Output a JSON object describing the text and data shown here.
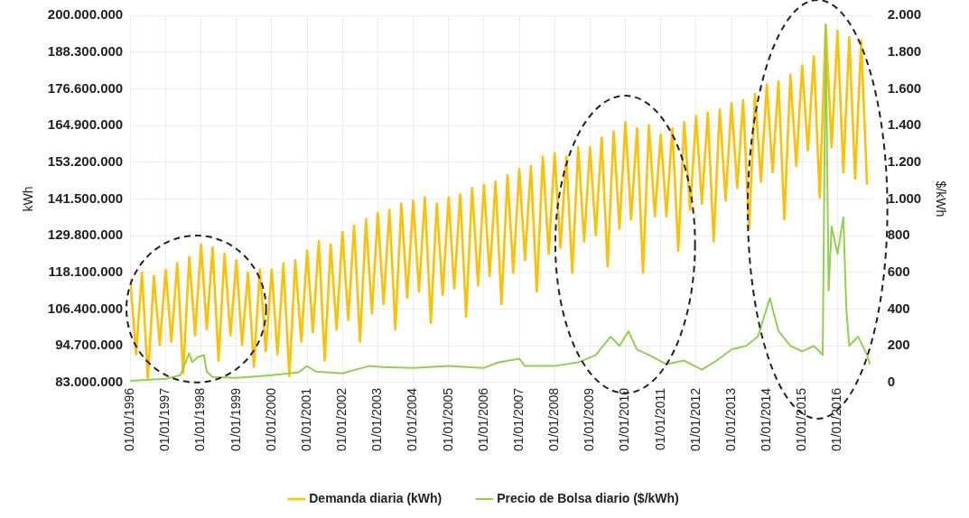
{
  "chart_data": {
    "type": "line",
    "xlabel": null,
    "ylabel": "kWh",
    "y2label": "$/kWh",
    "x": [
      "1996-01",
      "1996-03",
      "1996-05",
      "1996-07",
      "1996-09",
      "1996-11",
      "1997-01",
      "1997-03",
      "1997-05",
      "1997-07",
      "1997-09",
      "1997-11",
      "1998-01",
      "1998-03",
      "1998-05",
      "1998-07",
      "1998-09",
      "1998-11",
      "1999-01",
      "1999-03",
      "1999-05",
      "1999-07",
      "1999-09",
      "1999-11",
      "2000-01",
      "2000-03",
      "2000-05",
      "2000-07",
      "2000-09",
      "2000-11",
      "2001-01",
      "2001-03",
      "2001-05",
      "2001-07",
      "2001-09",
      "2001-11",
      "2002-01",
      "2002-03",
      "2002-05",
      "2002-07",
      "2002-09",
      "2002-11",
      "2003-01",
      "2003-03",
      "2003-05",
      "2003-07",
      "2003-09",
      "2003-11",
      "2004-01",
      "2004-03",
      "2004-05",
      "2004-07",
      "2004-09",
      "2004-11",
      "2005-01",
      "2005-03",
      "2005-05",
      "2005-07",
      "2005-09",
      "2005-11",
      "2006-01",
      "2006-03",
      "2006-05",
      "2006-07",
      "2006-09",
      "2006-11",
      "2007-01",
      "2007-03",
      "2007-05",
      "2007-07",
      "2007-09",
      "2007-11",
      "2008-01",
      "2008-03",
      "2008-05",
      "2008-07",
      "2008-09",
      "2008-11",
      "2009-01",
      "2009-03",
      "2009-05",
      "2009-07",
      "2009-09",
      "2009-11",
      "2010-01",
      "2010-03",
      "2010-05",
      "2010-07",
      "2010-09",
      "2010-11",
      "2011-01",
      "2011-03",
      "2011-05",
      "2011-07",
      "2011-09",
      "2011-11",
      "2012-01",
      "2012-03",
      "2012-05",
      "2012-07",
      "2012-09",
      "2012-11",
      "2013-01",
      "2013-03",
      "2013-05",
      "2013-07",
      "2013-09",
      "2013-11",
      "2014-01",
      "2014-03",
      "2014-05",
      "2014-07",
      "2014-09",
      "2014-11",
      "2015-01",
      "2015-03",
      "2015-05",
      "2015-07",
      "2015-09",
      "2015-11",
      "2016-01",
      "2016-03",
      "2016-05",
      "2016-07",
      "2016-09",
      "2016-11"
    ],
    "series": [
      {
        "name": "Demanda diaria (kWh)",
        "color": "#ffc000",
        "values": [
          116000000,
          92000000,
          118000000,
          84000000,
          117000000,
          95000000,
          119000000,
          96000000,
          121000000,
          86000000,
          123000000,
          98000000,
          127000000,
          100000000,
          126000000,
          90000000,
          124000000,
          98000000,
          122000000,
          95000000,
          118000000,
          88000000,
          119000000,
          93000000,
          119000000,
          92000000,
          121000000,
          85000000,
          122000000,
          96000000,
          125000000,
          99000000,
          128000000,
          90000000,
          127000000,
          100000000,
          131000000,
          103000000,
          133000000,
          96000000,
          135000000,
          105000000,
          137000000,
          108000000,
          138000000,
          100000000,
          140000000,
          110000000,
          141000000,
          112000000,
          142000000,
          102000000,
          140000000,
          111000000,
          142000000,
          113000000,
          143000000,
          104000000,
          145000000,
          114000000,
          146000000,
          117000000,
          147000000,
          108000000,
          149000000,
          118000000,
          151000000,
          122000000,
          152000000,
          112000000,
          155000000,
          124000000,
          156000000,
          126000000,
          155000000,
          118000000,
          158000000,
          128000000,
          158000000,
          130000000,
          161000000,
          120000000,
          163000000,
          132000000,
          166000000,
          135000000,
          164000000,
          118000000,
          165000000,
          136000000,
          162000000,
          136000000,
          164000000,
          125000000,
          166000000,
          138000000,
          168000000,
          140000000,
          169000000,
          128000000,
          170000000,
          141000000,
          172000000,
          145000000,
          173000000,
          132000000,
          175000000,
          147000000,
          178000000,
          150000000,
          179000000,
          135000000,
          181000000,
          152000000,
          184000000,
          157000000,
          187000000,
          142000000,
          197000000,
          158000000,
          195000000,
          150000000,
          193000000,
          148000000,
          192000000,
          146000000
        ]
      },
      {
        "name": "Precio de Bolsa diario ($/kWh)",
        "color": "#92d050",
        "axis": "y2",
        "x": [
          "1996-01",
          "1996-06",
          "1997-01",
          "1997-06",
          "1997-09",
          "1997-10",
          "1997-12",
          "1998-02",
          "1998-03",
          "1998-05",
          "1999-01",
          "2000-01",
          "2000-10",
          "2001-01",
          "2001-04",
          "2002-01",
          "2002-10",
          "2003-03",
          "2004-01",
          "2005-01",
          "2006-01",
          "2006-06",
          "2007-01",
          "2007-03",
          "2008-01",
          "2008-09",
          "2009-03",
          "2009-08",
          "2009-11",
          "2010-02",
          "2010-05",
          "2010-09",
          "2011-03",
          "2011-09",
          "2012-03",
          "2012-08",
          "2013-01",
          "2013-06",
          "2013-10",
          "2014-02",
          "2014-05",
          "2014-09",
          "2015-01",
          "2015-05",
          "2015-08",
          "2015-09",
          "2015-10",
          "2015-11",
          "2016-01",
          "2016-03",
          "2016-04",
          "2016-05",
          "2016-08",
          "2016-11",
          "2016-12"
        ],
        "values": [
          10,
          15,
          20,
          40,
          160,
          110,
          140,
          150,
          60,
          30,
          25,
          40,
          55,
          90,
          60,
          50,
          90,
          85,
          80,
          90,
          80,
          110,
          130,
          90,
          90,
          110,
          150,
          250,
          200,
          280,
          180,
          150,
          100,
          120,
          70,
          120,
          180,
          200,
          250,
          460,
          280,
          200,
          170,
          200,
          150,
          1950,
          500,
          850,
          700,
          900,
          400,
          200,
          250,
          150,
          100
        ]
      }
    ],
    "xlim": [
      "1996-01-01",
      "2017-01-01"
    ],
    "xticks": [
      {
        "value": "1996-01-01",
        "label": "01/01/1996"
      },
      {
        "value": "1997-01-01",
        "label": "01/01/1997"
      },
      {
        "value": "1998-01-01",
        "label": "01/01/1998"
      },
      {
        "value": "1999-01-01",
        "label": "01/01/1999"
      },
      {
        "value": "2000-01-01",
        "label": "01/01/2000"
      },
      {
        "value": "2001-01-01",
        "label": "01/01/2001"
      },
      {
        "value": "2002-01-01",
        "label": "01/01/2002"
      },
      {
        "value": "2003-01-01",
        "label": "01/01/2003"
      },
      {
        "value": "2004-01-01",
        "label": "01/01/2004"
      },
      {
        "value": "2005-01-01",
        "label": "01/01/2005"
      },
      {
        "value": "2006-01-01",
        "label": "01/01/2006"
      },
      {
        "value": "2007-01-01",
        "label": "01/01/2007"
      },
      {
        "value": "2008-01-01",
        "label": "01/01/2008"
      },
      {
        "value": "2009-01-01",
        "label": "01/01/2009"
      },
      {
        "value": "2010-01-01",
        "label": "01/01/2010"
      },
      {
        "value": "2011-01-01",
        "label": "01/01/2011"
      },
      {
        "value": "2012-01-01",
        "label": "01/01/2012"
      },
      {
        "value": "2013-01-01",
        "label": "01/01/2013"
      },
      {
        "value": "2014-01-01",
        "label": "01/01/2014"
      },
      {
        "value": "2015-01-01",
        "label": "01/01/2015"
      },
      {
        "value": "2016-01-01",
        "label": "01/01/2016"
      }
    ],
    "ylim": [
      83000000,
      200000000
    ],
    "yticks": [
      {
        "value": 83000000,
        "label": "83.000.000"
      },
      {
        "value": 94700000,
        "label": "94.700.000"
      },
      {
        "value": 106400000,
        "label": "106.400.000"
      },
      {
        "value": 118100000,
        "label": "118.100.000"
      },
      {
        "value": 129800000,
        "label": "129.800.000"
      },
      {
        "value": 141500000,
        "label": "141.500.000"
      },
      {
        "value": 153200000,
        "label": "153.200.000"
      },
      {
        "value": 164900000,
        "label": "164.900.000"
      },
      {
        "value": 176600000,
        "label": "176.600.000"
      },
      {
        "value": 188300000,
        "label": "188.300.000"
      },
      {
        "value": 200000000,
        "label": "200.000.000"
      }
    ],
    "y2lim": [
      0,
      2000
    ],
    "y2ticks": [
      0,
      200,
      400,
      600,
      800,
      {
        "value": 1000,
        "label": "1.000"
      },
      {
        "value": 1200,
        "label": "1.200"
      },
      {
        "value": 1400,
        "label": "1.400"
      },
      {
        "value": 1600,
        "label": "1.600"
      },
      {
        "value": 1800,
        "label": "1.800"
      },
      {
        "value": 2000,
        "label": "2.000"
      }
    ],
    "grid": true,
    "legend": "bottom",
    "marker": "none",
    "line_style": "solid"
  }
}
